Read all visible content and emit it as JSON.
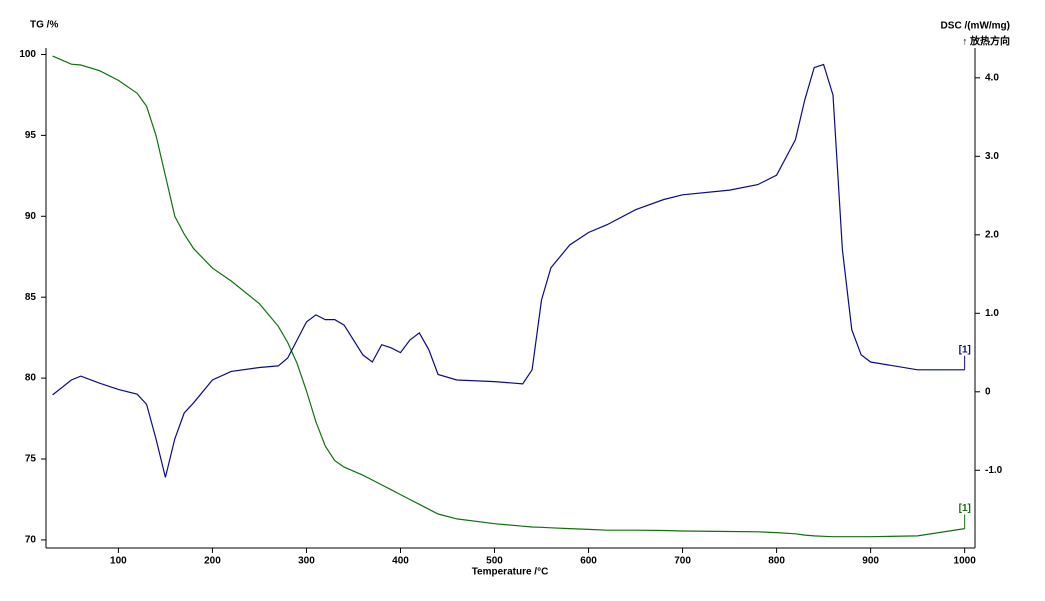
{
  "chart_data": {
    "type": "line",
    "title_left": "TG /%",
    "title_right": "DSC /(mW/mg)",
    "annotation": "↑ 放热方向",
    "xlabel": "Temperature /°C",
    "x": [
      30,
      50,
      60,
      80,
      100,
      120,
      130,
      140,
      150,
      160,
      170,
      180,
      200,
      220,
      250,
      270,
      280,
      290,
      300,
      310,
      320,
      330,
      340,
      360,
      370,
      380,
      390,
      400,
      410,
      420,
      430,
      440,
      460,
      500,
      530,
      540,
      550,
      560,
      580,
      600,
      620,
      650,
      680,
      700,
      750,
      780,
      800,
      820,
      830,
      840,
      850,
      860,
      870,
      880,
      890,
      900,
      950,
      1000
    ],
    "series": [
      {
        "name": "[1]",
        "color": "#107010",
        "axis": "y",
        "values": [
          99.9,
          99.4,
          99.35,
          99.0,
          98.4,
          97.6,
          96.8,
          95.0,
          92.5,
          90.0,
          88.9,
          88.0,
          86.8,
          86.0,
          84.6,
          83.2,
          82.2,
          80.9,
          79.2,
          77.3,
          75.8,
          74.9,
          74.5,
          74.0,
          73.7,
          73.4,
          73.1,
          72.8,
          72.5,
          72.2,
          71.9,
          71.6,
          71.3,
          71.0,
          70.85,
          70.8,
          70.78,
          70.75,
          70.7,
          70.65,
          70.6,
          70.6,
          70.58,
          70.55,
          70.52,
          70.5,
          70.45,
          70.38,
          70.3,
          70.25,
          70.22,
          70.2,
          70.2,
          70.2,
          70.2,
          70.2,
          70.25,
          70.7
        ]
      },
      {
        "name": "[1]",
        "color": "#0a0a8c",
        "axis": "y2",
        "values": [
          -0.04,
          0.15,
          0.2,
          0.11,
          0.03,
          -0.03,
          -0.16,
          -0.6,
          -1.09,
          -0.6,
          -0.27,
          -0.14,
          0.15,
          0.26,
          0.31,
          0.33,
          0.43,
          0.66,
          0.89,
          0.98,
          0.92,
          0.92,
          0.85,
          0.47,
          0.38,
          0.6,
          0.56,
          0.5,
          0.66,
          0.75,
          0.54,
          0.22,
          0.15,
          0.13,
          0.1,
          0.28,
          1.17,
          1.58,
          1.87,
          2.03,
          2.13,
          2.32,
          2.45,
          2.51,
          2.57,
          2.64,
          2.76,
          3.21,
          3.72,
          4.13,
          4.17,
          3.78,
          1.81,
          0.79,
          0.47,
          0.38,
          0.28,
          0.28
        ]
      }
    ],
    "xlim": [
      23,
      1011
    ],
    "xticks": [
      100,
      200,
      300,
      400,
      500,
      600,
      700,
      800,
      900,
      1000
    ],
    "ylim": [
      69.5,
      100.4
    ],
    "yticks": [
      70,
      75,
      80,
      85,
      90,
      95,
      100
    ],
    "y2lim": [
      -1.99,
      4.38
    ],
    "y2ticks": [
      {
        "value": -1,
        "label": "-1.0"
      },
      0,
      {
        "value": 1,
        "label": "1.0"
      },
      {
        "value": 2,
        "label": "2.0"
      },
      {
        "value": 3,
        "label": "3.0"
      },
      {
        "value": 4,
        "label": "4.0"
      }
    ],
    "grid": false
  }
}
